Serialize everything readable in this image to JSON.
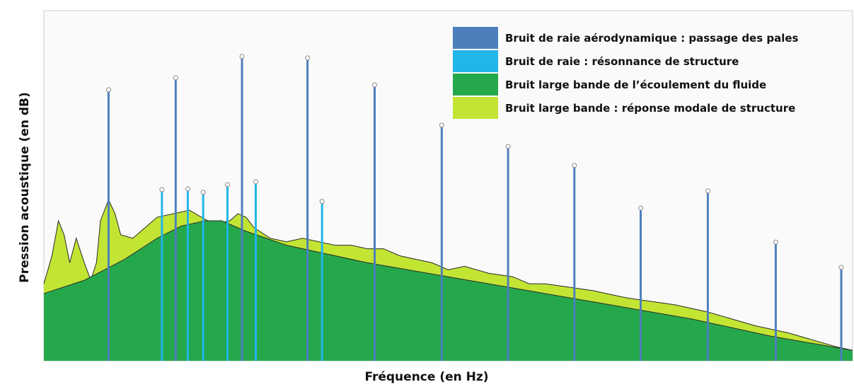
{
  "chart_data": {
    "type": "spectrum",
    "xlabel": "Fréquence (en Hz)",
    "ylabel": "Pression acoustique (en dB)",
    "xlim": [
      0,
      100
    ],
    "ylim": [
      0,
      100
    ],
    "legend": "upper right",
    "series": [
      {
        "name": "Bruit de raie aérodynamique : passage des pales",
        "color": "#4d7fbd",
        "kind": "stem",
        "x": [
          8.0,
          16.3,
          24.5,
          32.6,
          40.9,
          49.2,
          57.4,
          65.6,
          73.8,
          82.1,
          90.5,
          98.6
        ],
        "values": [
          77.4,
          80.8,
          86.9,
          86.5,
          78.8,
          67.3,
          61.2,
          55.8,
          43.6,
          48.5,
          33.9,
          26.7
        ]
      },
      {
        "name": "Bruit de raie : résonnance de structure",
        "color": "#22b5e9",
        "kind": "stem",
        "x": [
          14.6,
          17.8,
          19.7,
          22.7,
          26.2,
          34.4
        ],
        "values": [
          48.9,
          49.1,
          48.1,
          50.3,
          51.1,
          45.5
        ]
      },
      {
        "name": "Bruit large bande de l’écoulement du fluide",
        "color": "#25a84c",
        "kind": "area",
        "x": [
          0,
          5,
          10,
          14,
          17,
          20,
          22,
          25,
          30,
          40,
          50,
          60,
          70,
          80,
          90,
          100
        ],
        "values": [
          19.2,
          23,
          29,
          35,
          38.5,
          40,
          40,
          37,
          33,
          28,
          24,
          20,
          16,
          12,
          7,
          3
        ]
      },
      {
        "name": "Bruit large bande : réponse modale de structure",
        "color": "#c2e534",
        "kind": "area",
        "x": [
          0,
          1,
          1.8,
          2.5,
          3.2,
          4,
          5,
          5.8,
          6.5,
          7,
          8,
          8.8,
          9.5,
          11,
          12.5,
          14,
          16,
          18,
          19.5,
          21,
          23,
          24,
          25,
          26,
          28,
          30,
          32,
          34,
          36,
          38,
          40,
          42,
          44,
          46,
          48,
          50,
          52,
          55,
          58,
          60,
          62,
          65,
          68,
          70,
          72,
          75,
          78,
          80,
          82,
          85,
          88,
          90,
          92,
          95,
          98,
          100
        ],
        "values": [
          22,
          30,
          40,
          36,
          28,
          35,
          28,
          23,
          28,
          40,
          46,
          42,
          36,
          35,
          38,
          41,
          42,
          43,
          41,
          39,
          40,
          42,
          41,
          38,
          35,
          34,
          35,
          34,
          33,
          33,
          32,
          32,
          30,
          29,
          28,
          26,
          27,
          25,
          24,
          22,
          22,
          21,
          20,
          19,
          18,
          17,
          16,
          15,
          14,
          12,
          10,
          9,
          8,
          6,
          4,
          3
        ]
      }
    ]
  }
}
